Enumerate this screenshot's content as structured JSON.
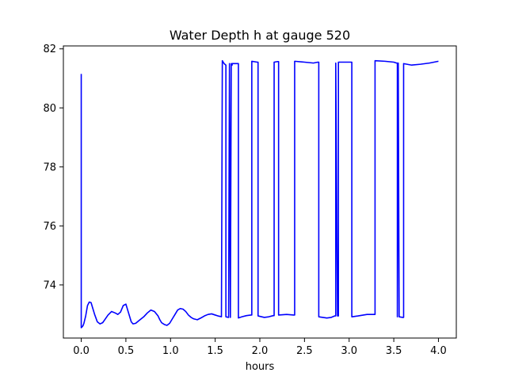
{
  "chart_data": {
    "type": "line",
    "title": "Water Depth h at gauge 520",
    "xlabel": "hours",
    "ylabel": "",
    "xlim": [
      -0.2,
      4.2
    ],
    "ylim": [
      72.2,
      82.1
    ],
    "xticks": [
      0.0,
      0.5,
      1.0,
      1.5,
      2.0,
      2.5,
      3.0,
      3.5,
      4.0
    ],
    "xtick_labels": [
      "0.0",
      "0.5",
      "1.0",
      "1.5",
      "2.0",
      "2.5",
      "3.0",
      "3.5",
      "4.0"
    ],
    "yticks": [
      74,
      76,
      78,
      80,
      82
    ],
    "ytick_labels": [
      "74",
      "76",
      "78",
      "80",
      "82"
    ],
    "grid": false,
    "series": [
      {
        "color": "#0000ff",
        "x": [
          0.0,
          0.0,
          0.01,
          0.02,
          0.03,
          0.05,
          0.07,
          0.09,
          0.11,
          0.13,
          0.15,
          0.18,
          0.21,
          0.24,
          0.27,
          0.3,
          0.34,
          0.38,
          0.41,
          0.44,
          0.47,
          0.5,
          0.53,
          0.56,
          0.58,
          0.61,
          0.65,
          0.7,
          0.74,
          0.78,
          0.82,
          0.86,
          0.88,
          0.9,
          0.93,
          0.96,
          0.99,
          1.02,
          1.05,
          1.08,
          1.11,
          1.14,
          1.17,
          1.2,
          1.23,
          1.26,
          1.3,
          1.34,
          1.38,
          1.42,
          1.46,
          1.5,
          1.53,
          1.56,
          1.57,
          1.58,
          1.59,
          1.6,
          1.62,
          1.62,
          1.65,
          1.66,
          1.67,
          1.67,
          1.68,
          1.69,
          1.69,
          1.75,
          1.76,
          1.76,
          1.8,
          1.85,
          1.9,
          1.91,
          1.91,
          1.97,
          1.98,
          1.98,
          2.05,
          2.1,
          2.15,
          2.16,
          2.16,
          2.2,
          2.21,
          2.21,
          2.3,
          2.38,
          2.39,
          2.39,
          2.5,
          2.6,
          2.65,
          2.66,
          2.66,
          2.75,
          2.8,
          2.84,
          2.85,
          2.85,
          2.87,
          2.88,
          2.88,
          2.95,
          3.0,
          3.02,
          3.03,
          3.03,
          3.1,
          3.2,
          3.28,
          3.29,
          3.29,
          3.4,
          3.5,
          3.53,
          3.54,
          3.54,
          3.55,
          3.56,
          3.56,
          3.6,
          3.61,
          3.61,
          3.7,
          3.8,
          3.9,
          4.0
        ],
        "y": [
          81.15,
          72.55,
          72.58,
          72.62,
          72.7,
          72.95,
          73.3,
          73.42,
          73.4,
          73.2,
          73.0,
          72.75,
          72.68,
          72.72,
          72.85,
          72.98,
          73.1,
          73.05,
          73.0,
          73.08,
          73.3,
          73.35,
          73.05,
          72.75,
          72.68,
          72.7,
          72.8,
          72.92,
          73.05,
          73.15,
          73.1,
          72.95,
          72.82,
          72.72,
          72.66,
          72.63,
          72.7,
          72.85,
          73.0,
          73.15,
          73.2,
          73.18,
          73.1,
          72.98,
          72.9,
          72.85,
          72.82,
          72.88,
          72.95,
          73.0,
          73.02,
          72.98,
          72.95,
          72.93,
          72.92,
          81.6,
          81.55,
          81.5,
          81.45,
          72.92,
          72.9,
          81.5,
          72.9,
          72.9,
          81.5,
          81.45,
          81.5,
          81.5,
          81.5,
          72.88,
          72.92,
          72.96,
          72.98,
          72.98,
          81.58,
          81.55,
          81.55,
          72.95,
          72.9,
          72.92,
          72.96,
          72.96,
          81.55,
          81.57,
          81.57,
          72.98,
          73.0,
          72.98,
          72.98,
          81.58,
          81.55,
          81.52,
          81.55,
          81.55,
          72.92,
          72.88,
          72.9,
          72.95,
          72.95,
          81.52,
          72.95,
          72.95,
          81.55,
          81.55,
          81.55,
          81.55,
          81.55,
          72.92,
          72.95,
          73.0,
          73.0,
          73.0,
          81.6,
          81.58,
          81.55,
          81.52,
          81.52,
          72.92,
          81.52,
          72.92,
          72.92,
          72.9,
          72.9,
          81.5,
          81.45,
          81.48,
          81.52,
          81.58
        ]
      }
    ]
  }
}
